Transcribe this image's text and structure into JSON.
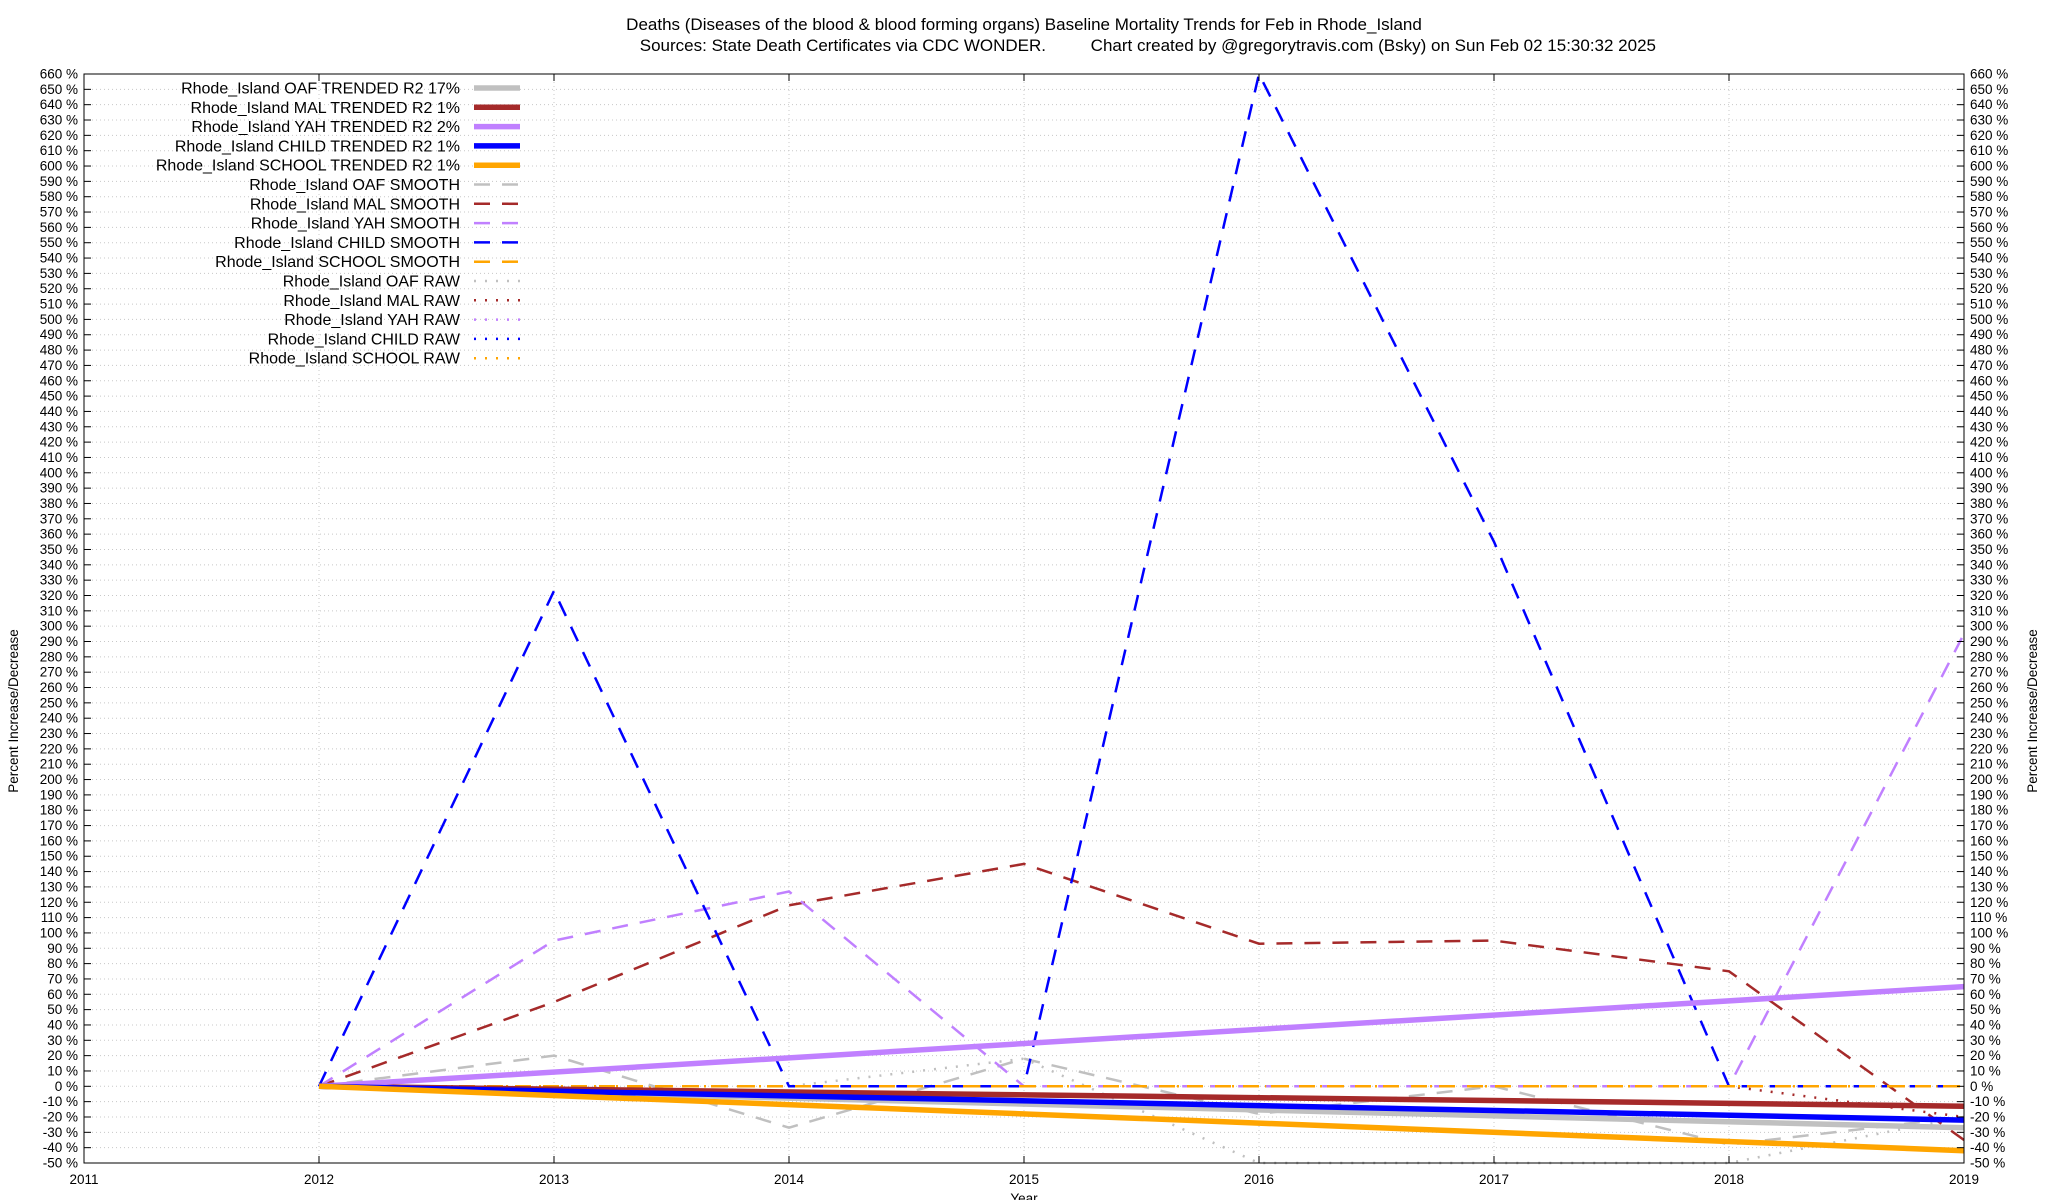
{
  "chart_data": {
    "type": "line",
    "title_line1": "Deaths (Diseases of the blood & blood forming organs)  Baseline Mortality Trends for Feb in Rhode_Island",
    "title_line2a": "Sources: State Death Certificates via CDC WONDER.",
    "title_line2b": "Chart created by @gregorytravis.com (Bsky) on Sun Feb 02 15:30:32 2025",
    "xlabel": "Year",
    "ylabel_left": "Percent Increase/Decrease",
    "ylabel_right": "Percent Increase/Decrease",
    "xlim": [
      2011,
      2019
    ],
    "ylim": [
      -50,
      660
    ],
    "x_ticks": [
      "2011",
      "2012",
      "2013",
      "2014",
      "2015",
      "2016",
      "2017",
      "2018",
      "2019"
    ],
    "y_tick_step": 10,
    "y_tick_suffix": " %",
    "grid": true,
    "legend_placement": "top-left",
    "series": [
      {
        "name": "Rhode_Island OAF TRENDED R2  17%",
        "color": "#c0c0c0",
        "style": "solid",
        "x": [
          2012,
          2019
        ],
        "values": [
          0,
          -27
        ]
      },
      {
        "name": "Rhode_Island MAL TRENDED R2   1%",
        "color": "#a52a2a",
        "style": "solid",
        "x": [
          2012,
          2019
        ],
        "values": [
          0,
          -13
        ]
      },
      {
        "name": "Rhode_Island YAH TRENDED R2   2%",
        "color": "#c080ff",
        "style": "solid",
        "x": [
          2012,
          2019
        ],
        "values": [
          0,
          65
        ]
      },
      {
        "name": "Rhode_Island CHILD TRENDED R2   1%",
        "color": "#0000ff",
        "style": "solid",
        "x": [
          2012,
          2019
        ],
        "values": [
          0,
          -22
        ]
      },
      {
        "name": "Rhode_Island SCHOOL TRENDED R2   1%",
        "color": "#ffa500",
        "style": "solid",
        "x": [
          2012,
          2019
        ],
        "values": [
          0,
          -42
        ]
      },
      {
        "name": "Rhode_Island OAF SMOOTH",
        "color": "#c0c0c0",
        "style": "dashed",
        "x": [
          2012,
          2013,
          2014,
          2015,
          2016,
          2017,
          2018,
          2019
        ],
        "values": [
          0,
          20,
          -27,
          18,
          -18,
          0,
          -38,
          -20
        ]
      },
      {
        "name": "Rhode_Island MAL SMOOTH",
        "color": "#a52a2a",
        "style": "dashed",
        "x": [
          2012,
          2013,
          2014,
          2015,
          2016,
          2017,
          2018,
          2019
        ],
        "values": [
          0,
          55,
          118,
          145,
          93,
          95,
          75,
          -35
        ]
      },
      {
        "name": "Rhode_Island YAH SMOOTH",
        "color": "#c080ff",
        "style": "dashed",
        "x": [
          2012,
          2013,
          2014,
          2015,
          2016,
          2017,
          2018,
          2019
        ],
        "values": [
          0,
          95,
          127,
          0,
          0,
          0,
          0,
          295
        ]
      },
      {
        "name": "Rhode_Island CHILD SMOOTH",
        "color": "#0000ff",
        "style": "dashed",
        "x": [
          2012,
          2013,
          2014,
          2015,
          2016,
          2017,
          2018,
          2019
        ],
        "values": [
          0,
          323,
          0,
          0,
          660,
          355,
          0,
          0
        ]
      },
      {
        "name": "Rhode_Island SCHOOL SMOOTH",
        "color": "#ffa500",
        "style": "dashed",
        "x": [
          2012,
          2013,
          2014,
          2015,
          2016,
          2017,
          2018,
          2019
        ],
        "values": [
          0,
          0,
          0,
          0,
          0,
          0,
          0,
          0
        ]
      },
      {
        "name": "Rhode_Island OAF RAW",
        "color": "#c0c0c0",
        "style": "dotted",
        "x": [
          2012,
          2013,
          2014,
          2015,
          2016,
          2017,
          2018,
          2019
        ],
        "values": [
          0,
          0,
          0,
          18,
          -50,
          -50,
          -50,
          -20
        ]
      },
      {
        "name": "Rhode_Island MAL RAW",
        "color": "#a52a2a",
        "style": "dotted",
        "x": [
          2012,
          2013,
          2014,
          2015,
          2016,
          2017,
          2018,
          2019
        ],
        "values": [
          0,
          0,
          0,
          0,
          0,
          0,
          0,
          -20
        ]
      },
      {
        "name": "Rhode_Island YAH RAW",
        "color": "#c080ff",
        "style": "dotted",
        "x": [
          2012,
          2013,
          2014,
          2015,
          2016,
          2017,
          2018,
          2019
        ],
        "values": [
          0,
          0,
          0,
          0,
          0,
          0,
          0,
          0
        ]
      },
      {
        "name": "Rhode_Island CHILD RAW",
        "color": "#0000ff",
        "style": "dotted",
        "x": [
          2012,
          2013,
          2014,
          2015,
          2016,
          2017,
          2018,
          2019
        ],
        "values": [
          0,
          0,
          0,
          0,
          0,
          0,
          0,
          0
        ]
      },
      {
        "name": "Rhode_Island SCHOOL RAW",
        "color": "#ffa500",
        "style": "dotted",
        "x": [
          2012,
          2013,
          2014,
          2015,
          2016,
          2017,
          2018,
          2019
        ],
        "values": [
          0,
          0,
          0,
          0,
          0,
          0,
          0,
          0
        ]
      }
    ]
  }
}
